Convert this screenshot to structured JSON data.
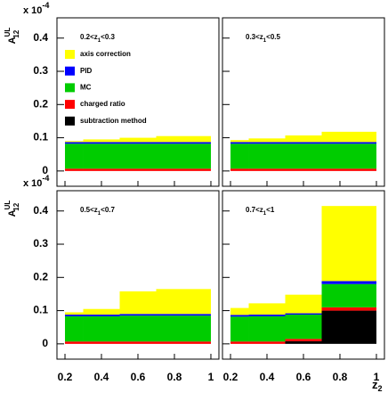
{
  "chart_data": {
    "type": "histogram",
    "y_label": {
      "base": "A",
      "sup": "UL",
      "sub": "12"
    },
    "multiplier": {
      "base": "x 10",
      "exp": "-4"
    },
    "x_label": {
      "base": "z",
      "sub": "2"
    },
    "bins": [
      0.2,
      0.3,
      0.5,
      0.7,
      1.0
    ],
    "xlim": [
      0.156,
      1.044
    ],
    "xticks": [
      0.2,
      0.4,
      0.6,
      0.8,
      1
    ],
    "ylim": [
      -0.046,
      0.461
    ],
    "yticks": [
      0,
      0.1,
      0.2,
      0.3,
      0.4
    ],
    "series": [
      {
        "name": "subtraction method",
        "color": "#000000"
      },
      {
        "name": "charged ratio",
        "color": "#ff0000"
      },
      {
        "name": "MC",
        "color": "#00cc00"
      },
      {
        "name": "PID",
        "color": "#0000ff"
      },
      {
        "name": "axis correction",
        "color": "#ffff00"
      }
    ],
    "panels": [
      {
        "label": {
          "pre": "0.2<z",
          "sub": "1",
          "post": "<0.3"
        },
        "series_values": [
          [
            0,
            0,
            0,
            0
          ],
          [
            0.007,
            0.007,
            0.007,
            0.007
          ],
          [
            0.075,
            0.075,
            0.075,
            0.075
          ],
          [
            0.005,
            0.005,
            0.005,
            0.005
          ],
          [
            0.003,
            0.008,
            0.013,
            0.018
          ]
        ]
      },
      {
        "label": {
          "pre": "0.3<z",
          "sub": "1",
          "post": "<0.5"
        },
        "series_values": [
          [
            0,
            0,
            0,
            0
          ],
          [
            0.007,
            0.007,
            0.007,
            0.007
          ],
          [
            0.075,
            0.075,
            0.075,
            0.075
          ],
          [
            0.005,
            0.005,
            0.005,
            0.005
          ],
          [
            0.006,
            0.011,
            0.02,
            0.031
          ]
        ]
      },
      {
        "label": {
          "pre": "0.5<z",
          "sub": "1",
          "post": "<0.7"
        },
        "series_values": [
          [
            0,
            0,
            0,
            0
          ],
          [
            0.007,
            0.007,
            0.007,
            0.007
          ],
          [
            0.076,
            0.076,
            0.078,
            0.078
          ],
          [
            0.005,
            0.005,
            0.005,
            0.005
          ],
          [
            0.007,
            0.017,
            0.068,
            0.075
          ]
        ]
      },
      {
        "label": {
          "pre": "0.7<z",
          "sub": "1",
          "post": "<1"
        },
        "series_values": [
          [
            0,
            0,
            0.008,
            0.1
          ],
          [
            0.007,
            0.007,
            0.007,
            0.01
          ],
          [
            0.075,
            0.076,
            0.073,
            0.07
          ],
          [
            0.005,
            0.005,
            0.004,
            0.009
          ],
          [
            0.021,
            0.034,
            0.056,
            0.226
          ]
        ]
      }
    ]
  }
}
